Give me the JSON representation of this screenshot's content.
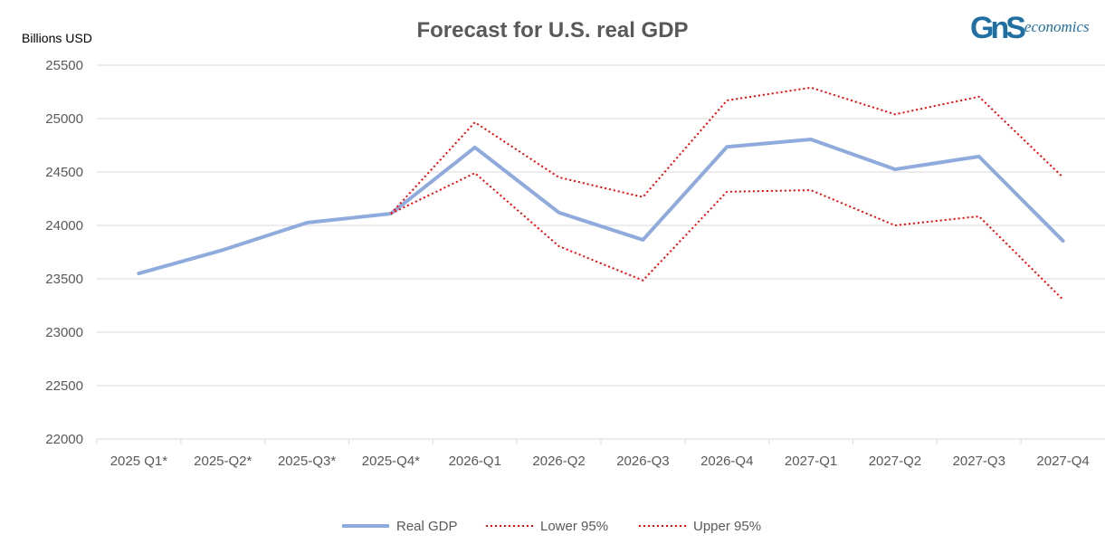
{
  "logo": {
    "text_main": "GnS",
    "text_sub": "economics"
  },
  "colors": {
    "real": "#8faadc",
    "bands": "#ff0000",
    "grid": "#d9d9d9"
  },
  "chart_data": {
    "type": "line",
    "title": "Forecast for U.S. real GDP",
    "ylabel": "Billions USD",
    "xlabel": "",
    "ylim": [
      22000,
      25500
    ],
    "yticks": [
      22000,
      22500,
      23000,
      23500,
      24000,
      24500,
      25000,
      25500
    ],
    "grid": true,
    "legend_position": "bottom",
    "categories": [
      "2025 Q1*",
      "2025-Q2*",
      "2025-Q3*",
      "2025-Q4*",
      "2026-Q1",
      "2026-Q2",
      "2026-Q3",
      "2026-Q4",
      "2027-Q1",
      "2027-Q2",
      "2027-Q3",
      "2027-Q4"
    ],
    "series": [
      {
        "name": "Real GDP",
        "style": "solid",
        "values": [
          23550,
          23770,
          24025,
          24110,
          24730,
          24120,
          23865,
          24735,
          24805,
          24525,
          24645,
          23855
        ]
      },
      {
        "name": "Lower 95%",
        "style": "dotted",
        "values": [
          null,
          null,
          null,
          24110,
          24490,
          23805,
          23485,
          24315,
          24330,
          24000,
          24085,
          23305
        ]
      },
      {
        "name": "Upper 95%",
        "style": "dotted",
        "values": [
          null,
          null,
          null,
          24110,
          24965,
          24450,
          24265,
          25170,
          25290,
          25040,
          25205,
          24450
        ]
      }
    ]
  }
}
